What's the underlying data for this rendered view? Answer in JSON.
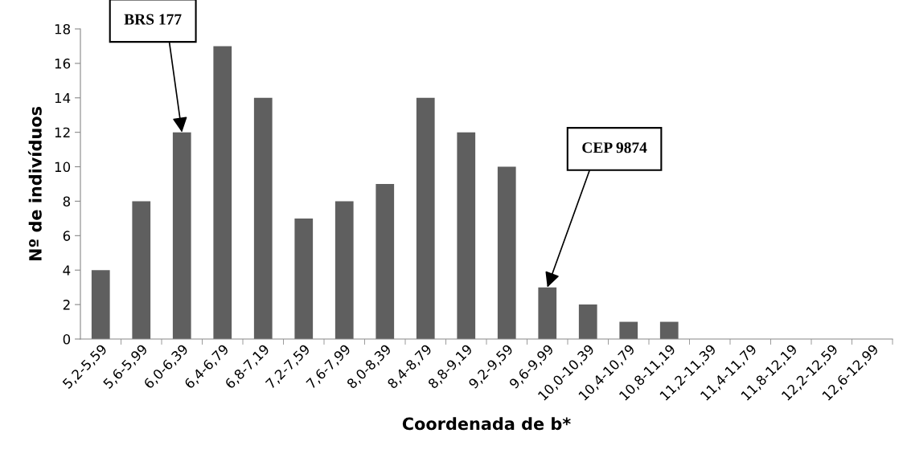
{
  "chart_data": {
    "type": "bar",
    "xlabel": "Coordenada de b*",
    "ylabel": "Nº de indivíduos",
    "categories": [
      "5,2-5,59",
      "5,6-5,99",
      "6,0-6,39",
      "6,4-6,79",
      "6,8-7,19",
      "7,2-7,59",
      "7,6-7,99",
      "8,0-8,39",
      "8,4-8,79",
      "8,8-9,19",
      "9,2-9,59",
      "9,6-9,99",
      "10,0-10,39",
      "10,4-10,79",
      "10,8-11,19",
      "11,2-11,39",
      "11,4-11,79",
      "11,8-12,19",
      "12,2-12,59",
      "12,6-12,99"
    ],
    "values": [
      4,
      8,
      12,
      17,
      14,
      7,
      8,
      9,
      14,
      12,
      10,
      3,
      2,
      1,
      1,
      0,
      0,
      0,
      0,
      0
    ],
    "color": "#5f5f5f",
    "ylim": [
      0,
      18
    ],
    "yticks": [
      0,
      2,
      4,
      6,
      8,
      10,
      12,
      14,
      16,
      18
    ],
    "grid": false,
    "legend": false,
    "annotations": [
      {
        "text": "BRS 177",
        "x": "6,0-6,39",
        "y": 12
      },
      {
        "text": "CEP 9874",
        "x": "9,6-9,99",
        "y": 3
      }
    ]
  }
}
